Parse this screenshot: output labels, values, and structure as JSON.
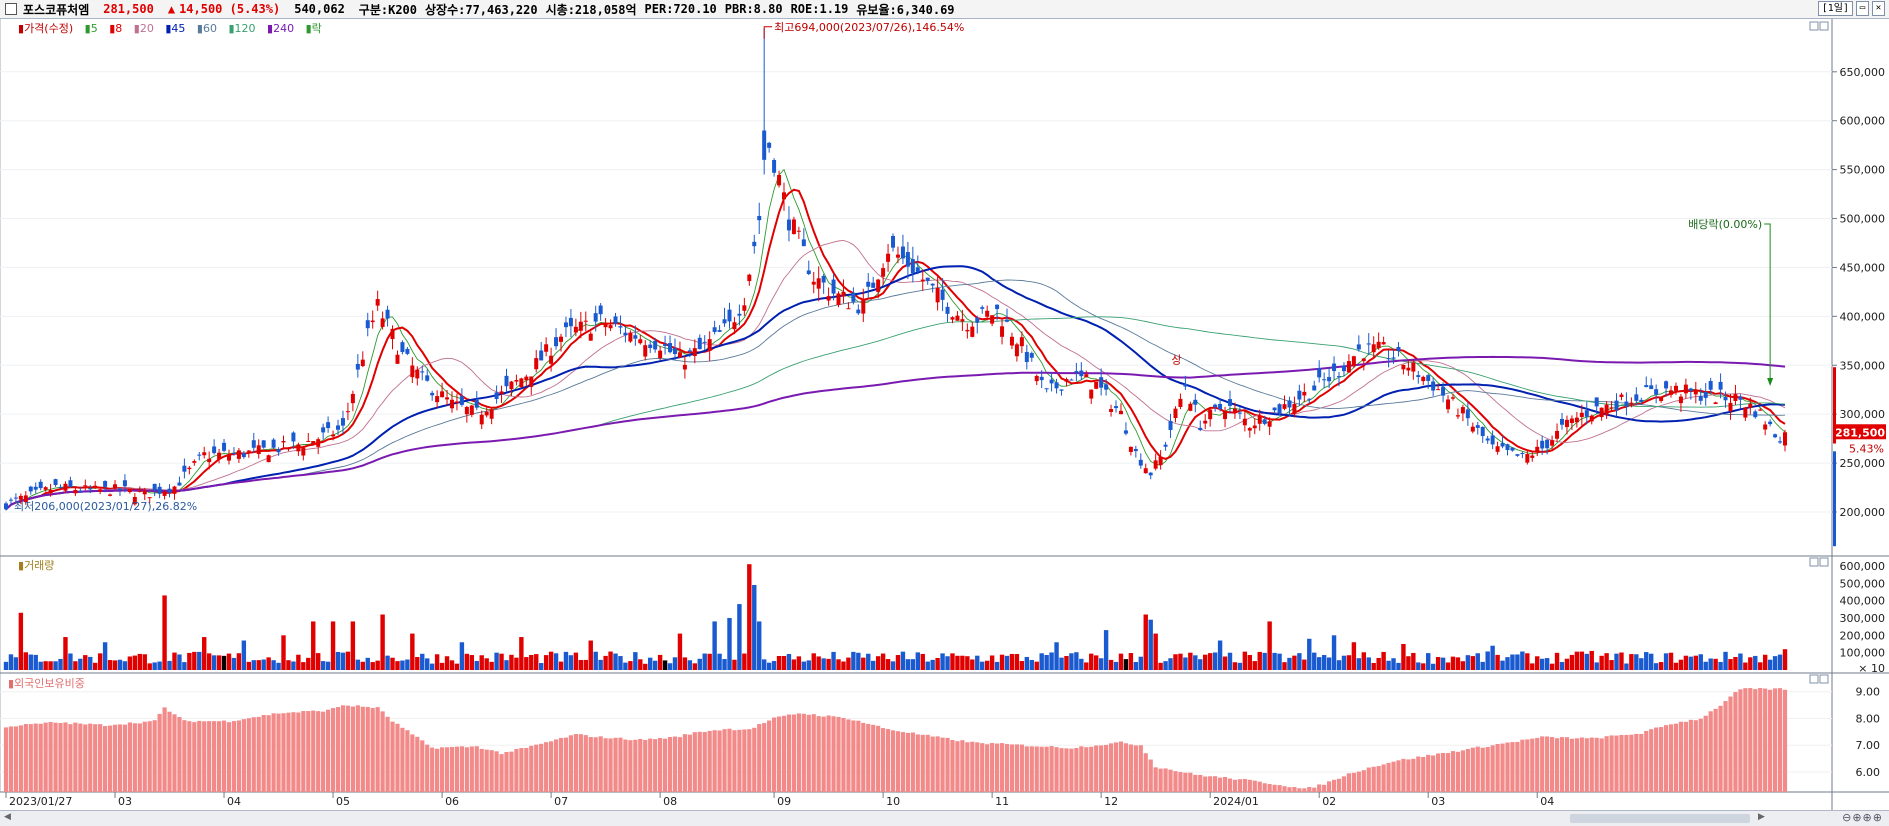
{
  "header": {
    "name": "포스코퓨처엠",
    "price": "281,500",
    "change_arrow": "▲",
    "change": "14,500 (5.43%)",
    "volume": "540,062",
    "division": "구분:K200",
    "listed": "상장수:77,463,220",
    "market_cap": "시총:218,058억",
    "per": "PER:720.10",
    "pbr": "PBR:8.80",
    "roe": "ROE:1.19",
    "float": "유보율:6,340.69",
    "period_button": "[1일]"
  },
  "legend": {
    "price_label": "가격(수정)",
    "ma": [
      {
        "label": "5",
        "color": "#2e9a2e"
      },
      {
        "label": "8",
        "color": "#e00000"
      },
      {
        "label": "20",
        "color": "#c07090"
      },
      {
        "label": "45",
        "color": "#0020b0"
      },
      {
        "label": "60",
        "color": "#5a7a9a"
      },
      {
        "label": "120",
        "color": "#3aa070"
      },
      {
        "label": "240",
        "color": "#7a1ab0"
      }
    ],
    "extra": "락",
    "volume_label": "거래량",
    "foreign_label": "외국인보유비중"
  },
  "chart_data": [
    {
      "type": "candlestick",
      "title": "가격(수정)",
      "y_ticks": [
        "200,000",
        "250,000",
        "300,000",
        "350,000",
        "400,000",
        "450,000",
        "500,000",
        "550,000",
        "600,000",
        "650,000"
      ],
      "ylim": [
        155000,
        705000
      ],
      "x_ticks": [
        "2023/01/27",
        "03",
        "04",
        "05",
        "06",
        "07",
        "08",
        "09",
        "10",
        "11",
        "12",
        "2024/01",
        "02",
        "03",
        "04"
      ],
      "annotations": {
        "high": {
          "text": "최고694,000(2023/07/26),146.54%",
          "value": 694000
        },
        "low": {
          "text": "최저206,000(2023/01/27),26.82%",
          "value": 206000
        },
        "dividend": {
          "text": "배당락(0.00%)"
        },
        "up_mark": "상",
        "current_price": "281,500",
        "current_pct": "5.43%"
      },
      "anchors": [
        [
          0,
          208000
        ],
        [
          10,
          225000
        ],
        [
          18,
          222000
        ],
        [
          23,
          223000
        ],
        [
          28,
          218000
        ],
        [
          34,
          226000
        ],
        [
          40,
          258000
        ],
        [
          48,
          260000
        ],
        [
          55,
          265000
        ],
        [
          60,
          270000
        ],
        [
          68,
          285000
        ],
        [
          73,
          380000
        ],
        [
          75,
          410000
        ],
        [
          80,
          360000
        ],
        [
          84,
          335000
        ],
        [
          90,
          310000
        ],
        [
          95,
          300000
        ],
        [
          100,
          320000
        ],
        [
          106,
          345000
        ],
        [
          112,
          380000
        ],
        [
          120,
          395000
        ],
        [
          126,
          382000
        ],
        [
          132,
          372000
        ],
        [
          136,
          355000
        ],
        [
          140,
          365000
        ],
        [
          146,
          390000
        ],
        [
          149,
          420000
        ],
        [
          152,
          500000
        ],
        [
          153,
          590000
        ],
        [
          155,
          560000
        ],
        [
          158,
          500000
        ],
        [
          163,
          440000
        ],
        [
          168,
          420000
        ],
        [
          173,
          410000
        ],
        [
          178,
          470000
        ],
        [
          183,
          450000
        ],
        [
          188,
          420000
        ],
        [
          194,
          395000
        ],
        [
          200,
          405000
        ],
        [
          205,
          370000
        ],
        [
          210,
          320000
        ],
        [
          215,
          340000
        ],
        [
          220,
          330000
        ],
        [
          225,
          300000
        ],
        [
          228,
          260000
        ],
        [
          231,
          240000
        ],
        [
          233,
          255000
        ],
        [
          236,
          300000
        ],
        [
          238,
          330000
        ],
        [
          241,
          290000
        ],
        [
          246,
          310000
        ],
        [
          251,
          290000
        ],
        [
          257,
          305000
        ],
        [
          262,
          320000
        ],
        [
          268,
          340000
        ],
        [
          273,
          365000
        ],
        [
          278,
          365000
        ],
        [
          283,
          350000
        ],
        [
          288,
          330000
        ],
        [
          294,
          300000
        ],
        [
          300,
          265000
        ],
        [
          306,
          255000
        ],
        [
          310,
          265000
        ],
        [
          314,
          285000
        ],
        [
          318,
          300000
        ],
        [
          324,
          310000
        ],
        [
          330,
          320000
        ],
        [
          336,
          325000
        ],
        [
          342,
          320000
        ],
        [
          350,
          315000
        ],
        [
          354,
          300000
        ],
        [
          357,
          280000
        ],
        [
          359,
          275000
        ]
      ],
      "series": [
        {
          "name": "5",
          "period": 5,
          "color": "#2e9a2e",
          "width": 0.9
        },
        {
          "name": "8",
          "period": 8,
          "color": "#e00000",
          "width": 2
        },
        {
          "name": "20",
          "period": 20,
          "color": "#c07090",
          "width": 0.9
        },
        {
          "name": "45",
          "period": 45,
          "color": "#0020b0",
          "width": 2
        },
        {
          "name": "60",
          "period": 60,
          "color": "#5a7a9a",
          "width": 0.9
        },
        {
          "name": "120",
          "period": 120,
          "color": "#3aa070",
          "width": 0.9
        },
        {
          "name": "240",
          "period": 240,
          "color": "#7a1ab0",
          "width": 2
        }
      ]
    },
    {
      "type": "bar",
      "title": "거래량",
      "y_ticks": [
        "100,000",
        "200,000",
        "300,000",
        "400,000",
        "500,000",
        "600,000"
      ],
      "ylim": [
        0,
        640000
      ],
      "unit": "× 10",
      "base_level": 65000,
      "spikes": [
        [
          3,
          330000
        ],
        [
          12,
          190000
        ],
        [
          20,
          160000
        ],
        [
          32,
          430000
        ],
        [
          40,
          190000
        ],
        [
          48,
          170000
        ],
        [
          56,
          200000
        ],
        [
          62,
          280000
        ],
        [
          66,
          280000
        ],
        [
          70,
          280000
        ],
        [
          76,
          320000
        ],
        [
          82,
          210000
        ],
        [
          92,
          160000
        ],
        [
          104,
          190000
        ],
        [
          118,
          170000
        ],
        [
          136,
          210000
        ],
        [
          143,
          280000
        ],
        [
          146,
          300000
        ],
        [
          148,
          380000
        ],
        [
          150,
          610000
        ],
        [
          151,
          490000
        ],
        [
          152,
          280000
        ],
        [
          212,
          160000
        ],
        [
          222,
          230000
        ],
        [
          230,
          320000
        ],
        [
          231,
          290000
        ],
        [
          232,
          210000
        ],
        [
          245,
          170000
        ],
        [
          255,
          280000
        ],
        [
          263,
          180000
        ],
        [
          268,
          200000
        ],
        [
          272,
          160000
        ],
        [
          282,
          150000
        ],
        [
          300,
          140000
        ],
        [
          320,
          110000
        ],
        [
          350,
          95000
        ],
        [
          359,
          120000
        ]
      ]
    },
    {
      "type": "bar",
      "title": "외국인보유비중",
      "y_ticks": [
        "6.00",
        "7.00",
        "8.00",
        "9.00"
      ],
      "ylim": [
        5.25,
        9.7
      ],
      "anchors": [
        [
          0,
          7.7
        ],
        [
          10,
          7.85
        ],
        [
          20,
          7.75
        ],
        [
          30,
          7.9
        ],
        [
          32,
          8.4
        ],
        [
          36,
          7.9
        ],
        [
          45,
          7.9
        ],
        [
          55,
          8.2
        ],
        [
          65,
          8.3
        ],
        [
          68,
          8.5
        ],
        [
          75,
          8.4
        ],
        [
          78,
          7.9
        ],
        [
          82,
          7.4
        ],
        [
          86,
          6.9
        ],
        [
          95,
          6.95
        ],
        [
          100,
          6.7
        ],
        [
          105,
          6.9
        ],
        [
          115,
          7.4
        ],
        [
          120,
          7.3
        ],
        [
          128,
          7.2
        ],
        [
          135,
          7.3
        ],
        [
          140,
          7.5
        ],
        [
          145,
          7.6
        ],
        [
          150,
          7.6
        ],
        [
          155,
          8.0
        ],
        [
          160,
          8.2
        ],
        [
          170,
          8.0
        ],
        [
          178,
          7.6
        ],
        [
          186,
          7.35
        ],
        [
          195,
          7.1
        ],
        [
          205,
          7.0
        ],
        [
          215,
          6.9
        ],
        [
          225,
          7.1
        ],
        [
          229,
          7.0
        ],
        [
          232,
          6.2
        ],
        [
          240,
          5.9
        ],
        [
          250,
          5.7
        ],
        [
          258,
          5.5
        ],
        [
          262,
          5.35
        ],
        [
          266,
          5.55
        ],
        [
          272,
          6.0
        ],
        [
          280,
          6.4
        ],
        [
          290,
          6.7
        ],
        [
          300,
          7.0
        ],
        [
          310,
          7.3
        ],
        [
          320,
          7.25
        ],
        [
          330,
          7.45
        ],
        [
          336,
          7.8
        ],
        [
          342,
          8.0
        ],
        [
          346,
          8.5
        ],
        [
          350,
          9.1
        ],
        [
          359,
          9.1
        ]
      ]
    }
  ]
}
